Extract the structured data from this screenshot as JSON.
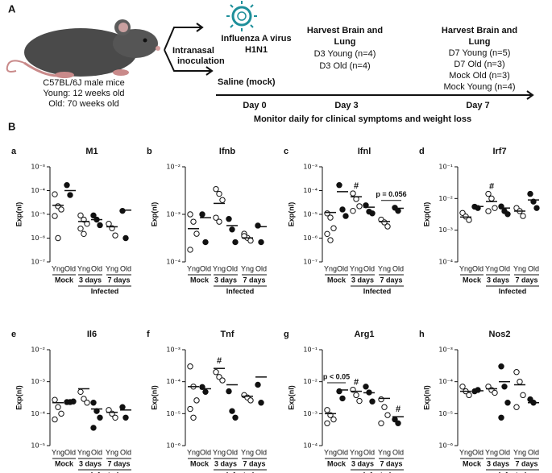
{
  "figure_label_a": "A",
  "figure_label_b": "B",
  "schematic": {
    "mouse_lines": [
      "C57BL/6J male mice",
      "Young: 12 weeks old",
      "Old: 70 weeks old"
    ],
    "route": [
      "Intranasal",
      "inoculation"
    ],
    "virus": [
      "Influenza A virus",
      "H1N1"
    ],
    "harvest_d3": [
      "Harvest Brain and",
      "Lung",
      "D3 Young (n=4)",
      "D3 Old (n=4)"
    ],
    "harvest_d7": [
      "Harvest Brain and",
      "Lung",
      "D7 Young (n=5)",
      "D7 Old (n=3)",
      "Mock Old (n=3)",
      "Mock Young (n=4)"
    ],
    "saline": "Saline (mock)",
    "days": [
      "Day 0",
      "Day 3",
      "Day 7"
    ],
    "monitor": "Monitor daily for clinical symptoms and weight loss"
  },
  "chart_data": [
    {
      "type": "scatter",
      "label": "a",
      "title": "M1",
      "ylabel": "Exp(nl)",
      "log_y": true,
      "ylim": [
        1e-07,
        0.001
      ],
      "yticks": [
        {
          "value": 1e-07,
          "label": "10⁻⁷"
        },
        {
          "value": 1e-06,
          "label": "10⁻⁶"
        },
        {
          "value": 1e-05,
          "label": "10⁻⁵"
        },
        {
          "value": 0.0001,
          "label": "10⁻⁴"
        },
        {
          "value": 0.001,
          "label": "10⁻³"
        }
      ],
      "categories": [
        "Yng",
        "Old",
        "Yng",
        "Old",
        "Yng",
        "Old"
      ],
      "groups": [
        "Mock",
        "3 days",
        "7 days"
      ],
      "infected_label": "Infected",
      "points": [
        {
          "filled": false,
          "values": [
            7e-05,
            2.2e-05,
            1.6e-05,
            8.5e-06,
            1e-06
          ],
          "mean": 2.4e-05
        },
        {
          "filled": true,
          "values": [
            0.00017,
            6.5e-05
          ],
          "mean": 0.0001
        },
        {
          "filled": false,
          "values": [
            9e-06,
            6e-06,
            4e-06,
            2.5e-06,
            1.5e-06
          ],
          "mean": 5e-06
        },
        {
          "filled": true,
          "values": [
            9e-06,
            6e-06,
            3.5e-06
          ],
          "mean": 6e-06
        },
        {
          "filled": false,
          "values": [
            4e-06,
            2.6e-06,
            1.3e-06
          ],
          "mean": 3e-06
        },
        {
          "filled": true,
          "values": [
            1.4e-05,
            1e-06
          ],
          "mean": 1.5e-05
        }
      ],
      "marks": [],
      "brackets": []
    },
    {
      "type": "scatter",
      "label": "b",
      "title": "Ifnb",
      "ylabel": "Exp(nl)",
      "log_y": true,
      "ylim": [
        0.0001,
        0.01
      ],
      "yticks": [
        {
          "value": 0.0001,
          "label": "10⁻⁴"
        },
        {
          "value": 0.001,
          "label": "10⁻³"
        },
        {
          "value": 0.01,
          "label": "10⁻²"
        }
      ],
      "categories": [
        "Yng",
        "Old",
        "Yng",
        "Old",
        "Yng",
        "Old"
      ],
      "groups": [
        "Mock",
        "3 days",
        "7 days"
      ],
      "infected_label": "Infected",
      "points": [
        {
          "filled": false,
          "values": [
            0.001,
            0.0007,
            0.00039,
            0.00018
          ],
          "mean": 0.0005
        },
        {
          "filled": true,
          "values": [
            0.001,
            0.00026
          ],
          "mean": 0.00085
        },
        {
          "filled": false,
          "values": [
            0.0034,
            0.0027,
            0.002,
            0.00085,
            0.0007
          ],
          "mean": 0.0017
        },
        {
          "filled": true,
          "values": [
            0.0008,
            0.00048,
            0.00026
          ],
          "mean": 0.00058
        },
        {
          "filled": false,
          "values": [
            0.00039,
            0.00032,
            0.00028,
            0.00035
          ],
          "mean": 0.00032
        },
        {
          "filled": true,
          "values": [
            0.00058,
            0.00026
          ],
          "mean": 0.00055
        }
      ],
      "marks": [],
      "brackets": []
    },
    {
      "type": "scatter",
      "label": "c",
      "title": "Ifnl",
      "ylabel": "Exp(nl)",
      "log_y": true,
      "ylim": [
        1e-07,
        0.001
      ],
      "yticks": [
        {
          "value": 1e-07,
          "label": "10⁻⁷"
        },
        {
          "value": 1e-06,
          "label": "10⁻⁶"
        },
        {
          "value": 1e-05,
          "label": "10⁻⁵"
        },
        {
          "value": 0.0001,
          "label": "10⁻⁴"
        },
        {
          "value": 0.001,
          "label": "10⁻³"
        }
      ],
      "categories": [
        "Yng",
        "Old",
        "Yng",
        "Old",
        "Yng",
        "Old"
      ],
      "groups": [
        "Mock",
        "3 days",
        "7 days"
      ],
      "infected_label": "Infected",
      "points": [
        {
          "filled": false,
          "values": [
            1.1e-05,
            7.3e-06,
            2.6e-06,
            1.5e-06,
            8.2e-07
          ],
          "mean": 1.2e-05
        },
        {
          "filled": true,
          "values": [
            0.00017,
            1.6e-05,
            8.5e-06
          ],
          "mean": 9e-05
        },
        {
          "filled": false,
          "values": [
            7.6e-05,
            4.4e-05,
            2.2e-05,
            1.4e-05
          ],
          "mean": 5.5e-05
        },
        {
          "filled": true,
          "values": [
            2.4e-05,
            1.3e-05,
            1.1e-05
          ],
          "mean": 2e-05
        },
        {
          "filled": false,
          "values": [
            6e-06,
            4.6e-06,
            3.1e-06
          ],
          "mean": 5e-06
        },
        {
          "filled": true,
          "values": [
            1.9e-05,
            1.4e-05
          ],
          "mean": 1.8e-05
        }
      ],
      "marks": [
        {
          "text": "#",
          "category": 2
        }
      ],
      "brackets": [
        {
          "text": "p = 0.056",
          "from": 4,
          "to": 5
        }
      ]
    },
    {
      "type": "scatter",
      "label": "d",
      "title": "Irf7",
      "ylabel": "Exp(nl)",
      "log_y": true,
      "ylim": [
        0.0001,
        0.1
      ],
      "yticks": [
        {
          "value": 0.0001,
          "label": "10⁻⁴"
        },
        {
          "value": 0.001,
          "label": "10⁻³"
        },
        {
          "value": 0.01,
          "label": "10⁻²"
        },
        {
          "value": 0.1,
          "label": "10⁻¹"
        }
      ],
      "categories": [
        "Yng",
        "Old",
        "Yng",
        "Old",
        "Yng",
        "Old"
      ],
      "groups": [
        "Mock",
        "3 days",
        "7 days"
      ],
      "infected_label": "Infected",
      "points": [
        {
          "filled": false,
          "values": [
            0.0035,
            0.0027,
            0.0021
          ],
          "mean": 0.0026
        },
        {
          "filled": true,
          "values": [
            0.0055,
            0.005
          ],
          "mean": 0.0056
        },
        {
          "filled": false,
          "values": [
            0.014,
            0.01,
            0.005,
            0.004
          ],
          "mean": 0.008
        },
        {
          "filled": true,
          "values": [
            0.0056,
            0.004,
            0.0032
          ],
          "mean": 0.005
        },
        {
          "filled": false,
          "values": [
            0.005,
            0.004,
            0.0028
          ],
          "mean": 0.004
        },
        {
          "filled": true,
          "values": [
            0.014,
            0.008,
            0.005
          ],
          "mean": 0.009
        }
      ],
      "marks": [
        {
          "text": "#",
          "category": 2
        }
      ],
      "brackets": []
    },
    {
      "type": "scatter",
      "label": "e",
      "title": "Il6",
      "ylabel": "Exp(nl)",
      "log_y": true,
      "ylim": [
        1e-05,
        0.01
      ],
      "yticks": [
        {
          "value": 1e-05,
          "label": "10⁻⁵"
        },
        {
          "value": 0.0001,
          "label": "10⁻⁴"
        },
        {
          "value": 0.001,
          "label": "10⁻³"
        },
        {
          "value": 0.01,
          "label": "10⁻²"
        }
      ],
      "categories": [
        "Yng",
        "Old",
        "Yng",
        "Old",
        "Yng",
        "Old"
      ],
      "groups": [
        "Mock",
        "3 days",
        "7 days"
      ],
      "infected_label": "Infected",
      "points": [
        {
          "filled": false,
          "values": [
            0.00027,
            0.00016,
            0.0001,
            6.6e-05
          ],
          "mean": 0.00022
        },
        {
          "filled": true,
          "values": [
            0.00023,
            0.00023,
            0.00024
          ],
          "mean": 0.00023
        },
        {
          "filled": false,
          "values": [
            0.00048,
            0.00029,
            0.00022
          ],
          "mean": 0.0006
        },
        {
          "filled": true,
          "values": [
            0.00022,
            0.00012,
            7.5e-05,
            3.6e-05
          ],
          "mean": 0.00014
        },
        {
          "filled": false,
          "values": [
            0.00013,
            0.0001,
            7.5e-05
          ],
          "mean": 0.00011
        },
        {
          "filled": true,
          "values": [
            0.00016,
            7.5e-05
          ],
          "mean": 0.00013
        }
      ],
      "marks": [],
      "brackets": []
    },
    {
      "type": "scatter",
      "label": "f",
      "title": "Tnf",
      "ylabel": "Exp(nl)",
      "log_y": true,
      "ylim": [
        1e-06,
        0.001
      ],
      "yticks": [
        {
          "value": 1e-06,
          "label": "10⁻⁶"
        },
        {
          "value": 1e-05,
          "label": "10⁻⁵"
        },
        {
          "value": 0.0001,
          "label": "10⁻⁴"
        },
        {
          "value": 0.001,
          "label": "10⁻³"
        }
      ],
      "categories": [
        "Yng",
        "Old",
        "Yng",
        "Old",
        "Yng",
        "Old"
      ],
      "groups": [
        "Mock",
        "3 days",
        "7 days"
      ],
      "infected_label": "Infected",
      "points": [
        {
          "filled": false,
          "values": [
            0.0003,
            7e-05,
            2.6e-05,
            1.4e-05,
            7.5e-06
          ],
          "mean": 7e-05
        },
        {
          "filled": true,
          "values": [
            6.8e-05,
            4.8e-05
          ],
          "mean": 6e-05
        },
        {
          "filled": false,
          "values": [
            0.0002,
            0.00014,
            0.00011
          ],
          "mean": 0.00026
        },
        {
          "filled": true,
          "values": [
            5e-05,
            1.2e-05,
            7.5e-06
          ],
          "mean": 8e-05
        },
        {
          "filled": false,
          "values": [
            3.8e-05,
            3.2e-05,
            2.6e-05
          ],
          "mean": 3.5e-05
        },
        {
          "filled": true,
          "values": [
            8e-05,
            2.2e-05
          ],
          "mean": 0.00014
        }
      ],
      "marks": [
        {
          "text": "#",
          "category": 2
        }
      ],
      "brackets": []
    },
    {
      "type": "scatter",
      "label": "g",
      "title": "Arg1",
      "ylabel": "Exp(nl)",
      "log_y": true,
      "ylim": [
        0.0001,
        0.1
      ],
      "yticks": [
        {
          "value": 0.0001,
          "label": "10⁻⁴"
        },
        {
          "value": 0.001,
          "label": "10⁻³"
        },
        {
          "value": 0.01,
          "label": "10⁻²"
        },
        {
          "value": 0.1,
          "label": "10⁻¹"
        }
      ],
      "categories": [
        "Yng",
        "Old",
        "Yng",
        "Old",
        "Yng",
        "Old"
      ],
      "groups": [
        "Mock",
        "3 days",
        "7 days"
      ],
      "infected_label": "Infected",
      "points": [
        {
          "filled": false,
          "values": [
            0.0013,
            0.0009,
            0.00066,
            0.0005
          ],
          "mean": 0.001
        },
        {
          "filled": true,
          "values": [
            0.005,
            0.003
          ],
          "mean": 0.0055
        },
        {
          "filled": false,
          "values": [
            0.0056,
            0.0038,
            0.0025
          ],
          "mean": 0.005
        },
        {
          "filled": true,
          "values": [
            0.007,
            0.0046,
            0.0024
          ],
          "mean": 0.0045
        },
        {
          "filled": false,
          "values": [
            0.0028,
            0.0016,
            0.0009,
            0.0005
          ],
          "mean": 0.003
        },
        {
          "filled": true,
          "values": [
            0.00066,
            0.0005
          ],
          "mean": 0.0008
        }
      ],
      "marks": [
        {
          "text": "#",
          "category": 2
        },
        {
          "text": "#",
          "category": 5
        }
      ],
      "brackets": [
        {
          "text": "p < 0.05",
          "from": 0,
          "to": 1
        }
      ]
    },
    {
      "type": "scatter",
      "label": "h",
      "title": "Nos2",
      "ylabel": "Exp(nl)",
      "log_y": true,
      "ylim": [
        1e-06,
        0.001
      ],
      "yticks": [
        {
          "value": 1e-06,
          "label": "10⁻⁶"
        },
        {
          "value": 1e-05,
          "label": "10⁻⁵"
        },
        {
          "value": 0.0001,
          "label": "10⁻⁴"
        },
        {
          "value": 0.001,
          "label": "10⁻³"
        }
      ],
      "categories": [
        "Yng",
        "Old",
        "Yng",
        "Old",
        "Yng",
        "Old"
      ],
      "groups": [
        "Mock",
        "3 days",
        "7 days"
      ],
      "infected_label": "Infected",
      "points": [
        {
          "filled": false,
          "values": [
            7e-05,
            5e-05,
            3.8e-05
          ],
          "mean": 5e-05
        },
        {
          "filled": true,
          "values": [
            5e-05,
            5.5e-05
          ],
          "mean": 5.2e-05
        },
        {
          "filled": false,
          "values": [
            7e-05,
            5.5e-05,
            4.5e-05
          ],
          "mean": 6e-05
        },
        {
          "filled": true,
          "values": [
            0.0003,
            7e-05,
            2.2e-05,
            7.5e-06
          ],
          "mean": 0.0001
        },
        {
          "filled": false,
          "values": [
            0.0002,
            0.0001,
            3.8e-05,
            1.6e-05
          ],
          "mean": 8e-05
        },
        {
          "filled": true,
          "values": [
            2.8e-05,
            2.2e-05
          ],
          "mean": 2.2e-05
        }
      ],
      "marks": [],
      "brackets": []
    }
  ]
}
